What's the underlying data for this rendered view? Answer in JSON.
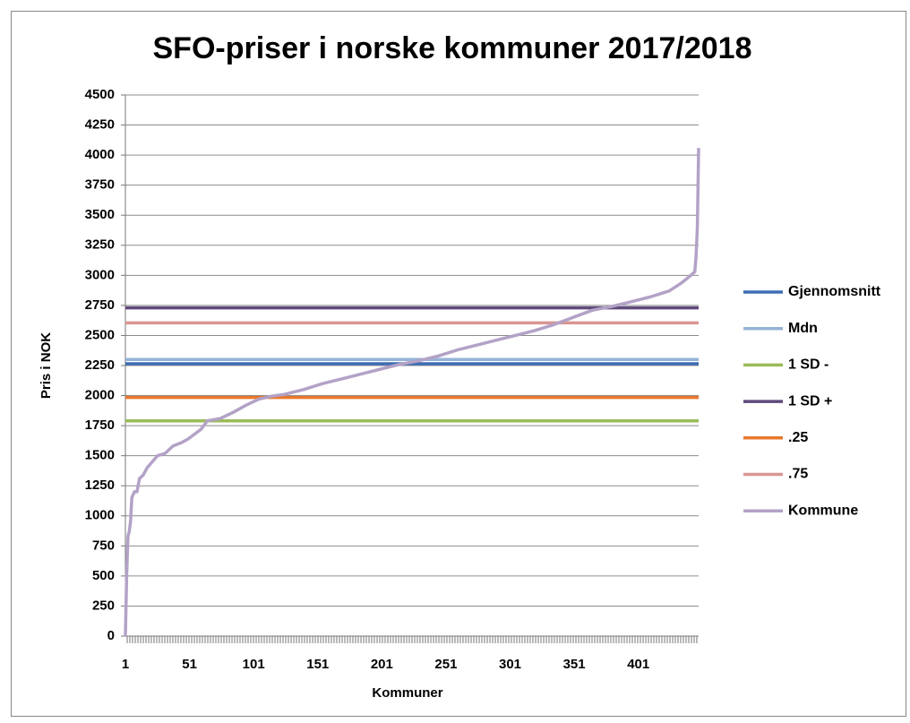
{
  "chart_data": {
    "type": "line",
    "title": "SFO-priser i norske kommuner 2017/2018",
    "x_label": "Kommuner",
    "y_label": "Pris i NOK",
    "xlim": [
      1,
      448
    ],
    "xticks": [
      1,
      51,
      101,
      151,
      201,
      251,
      301,
      351,
      401
    ],
    "ylim": [
      0,
      4500
    ],
    "yticks": [
      0,
      250,
      500,
      750,
      1000,
      1250,
      1500,
      1750,
      2000,
      2250,
      2500,
      2750,
      3000,
      3250,
      3500,
      3750,
      4000,
      4250,
      4500
    ],
    "grid": true,
    "legend": "right",
    "series": [
      {
        "name": "Gjennomsnitt",
        "color": "#3f6eb3",
        "value": 2265
      },
      {
        "name": "Mdn",
        "color": "#95b3d7",
        "value": 2300
      },
      {
        "name": "1 SD -",
        "color": "#9bbb59",
        "value": 1790
      },
      {
        "name": "1 SD +",
        "color": "#604a7b",
        "value": 2730
      },
      {
        "name": ".25",
        "color": "#e8782d",
        "value": 1985
      },
      {
        "name": ".75",
        "color": "#d99694",
        "value": 2605
      },
      {
        "name": "Kommune",
        "color": "#b3a2c7",
        "x": [
          1,
          2,
          3,
          4,
          5,
          6,
          8,
          10,
          12,
          15,
          18,
          22,
          26,
          32,
          38,
          45,
          50,
          55,
          60,
          65,
          75,
          85,
          95,
          105,
          115,
          125,
          140,
          155,
          170,
          185,
          200,
          215,
          230,
          245,
          260,
          275,
          290,
          305,
          320,
          335,
          350,
          365,
          380,
          395,
          410,
          425,
          435,
          442,
          445,
          446,
          447,
          448
        ],
        "values": [
          0,
          500,
          830,
          870,
          950,
          1150,
          1200,
          1200,
          1310,
          1340,
          1400,
          1450,
          1500,
          1520,
          1580,
          1610,
          1640,
          1680,
          1720,
          1790,
          1810,
          1860,
          1920,
          1970,
          1995,
          2010,
          2050,
          2100,
          2140,
          2180,
          2220,
          2260,
          2290,
          2330,
          2380,
          2420,
          2460,
          2500,
          2540,
          2590,
          2650,
          2710,
          2740,
          2780,
          2820,
          2870,
          2940,
          3000,
          3030,
          3150,
          3400,
          4060
        ]
      }
    ]
  }
}
